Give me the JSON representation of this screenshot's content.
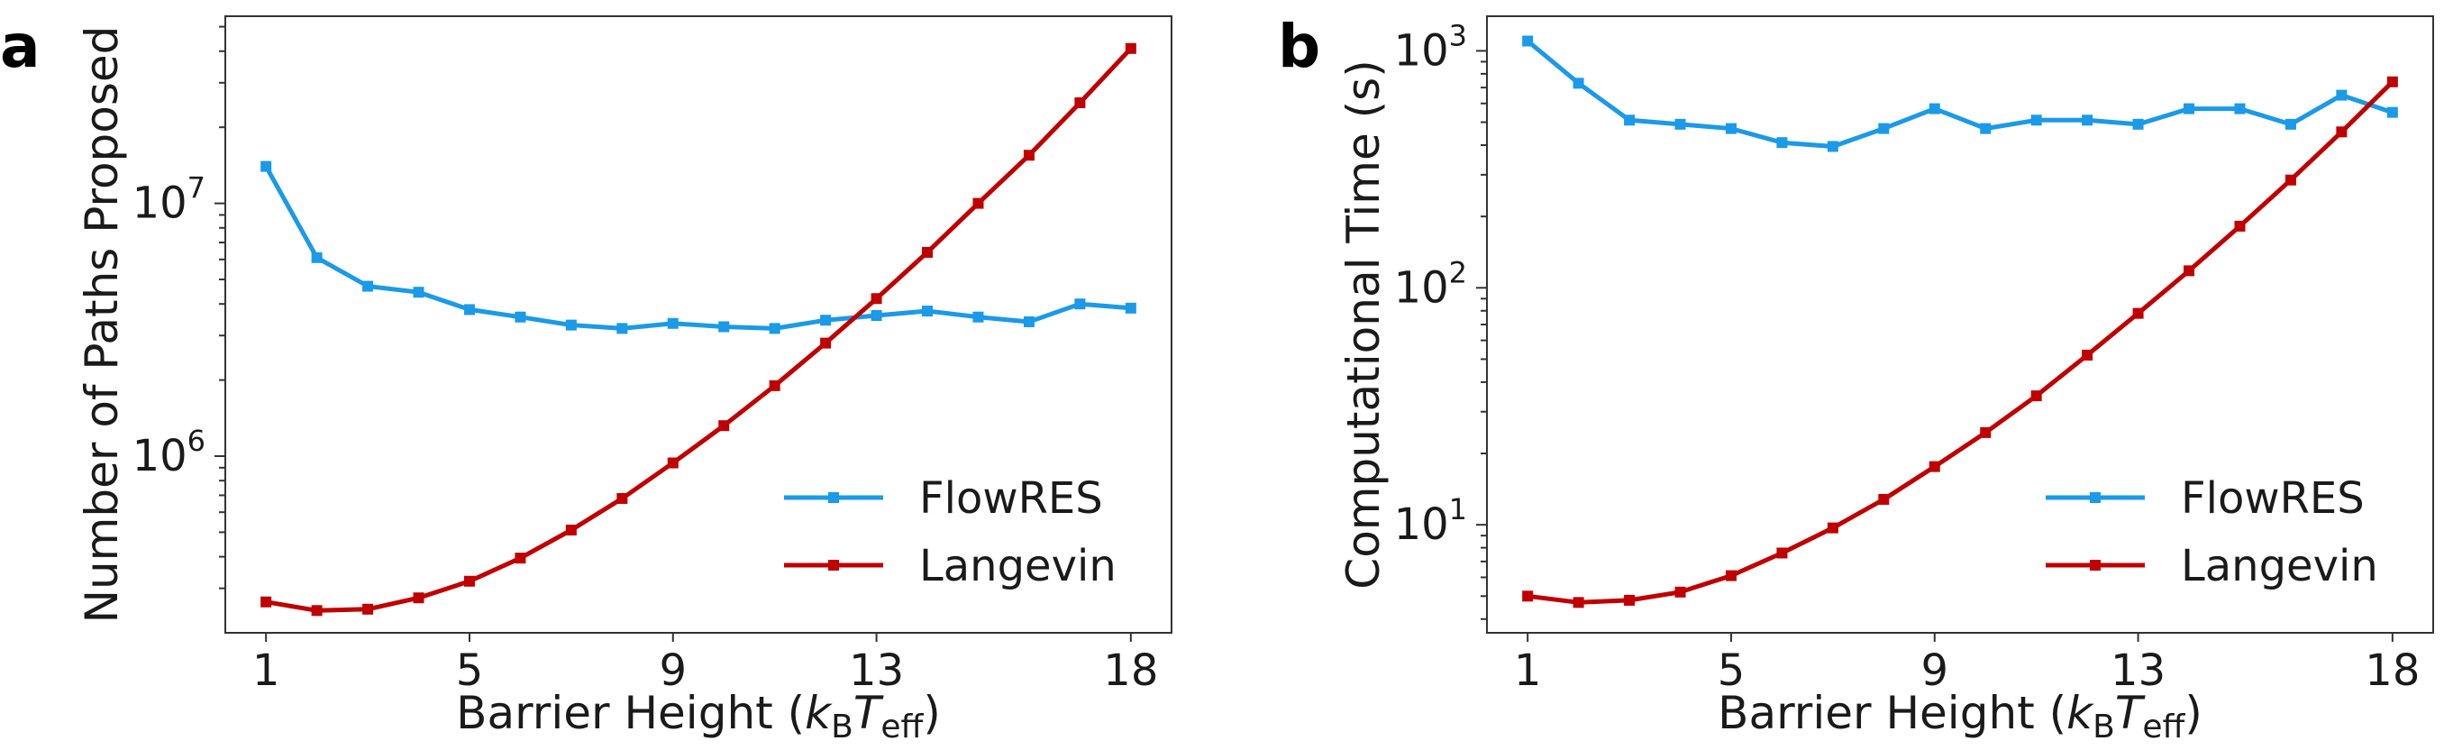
{
  "chart_data": [
    {
      "type": "line",
      "panel_label": "a",
      "ylabel": "Number of Paths Proposed",
      "xlabel": "Barrier Height (k_B T_eff)",
      "xlabel_parts": {
        "pre": "Barrier Height (",
        "k": "k",
        "ksub": "B",
        "T": "T",
        "tsub": "eff",
        "post": ")"
      },
      "x_ticks": [
        1,
        5,
        9,
        13,
        18
      ],
      "y_scale": "log",
      "y_ticks": [
        {
          "base": "10",
          "exp": "6",
          "value": 1000000
        },
        {
          "base": "10",
          "exp": "7",
          "value": 10000000
        }
      ],
      "xlim": [
        0.2,
        18.8
      ],
      "ylim": [
        200000,
        55000000
      ],
      "grid": false,
      "legend_position": "lower-right",
      "x": [
        1,
        2,
        3,
        4,
        5,
        6,
        7,
        8,
        9,
        10,
        11,
        12,
        13,
        14,
        15,
        16,
        17,
        18
      ],
      "series": [
        {
          "name": "FlowRES",
          "color": "#1a9ae8",
          "values": [
            14000000,
            6100000,
            4700000,
            4450000,
            3800000,
            3550000,
            3300000,
            3200000,
            3350000,
            3250000,
            3200000,
            3450000,
            3600000,
            3750000,
            3550000,
            3400000,
            4000000,
            3850000
          ]
        },
        {
          "name": "Langevin",
          "color": "#c00000",
          "values": [
            265000,
            245000,
            248000,
            275000,
            320000,
            395000,
            510000,
            680000,
            940000,
            1320000,
            1900000,
            2800000,
            4200000,
            6400000,
            10000000,
            15500000,
            25000000,
            41000000
          ]
        }
      ]
    },
    {
      "type": "line",
      "panel_label": "b",
      "ylabel": "Computational Time (s)",
      "xlabel": "Barrier Height (k_B T_eff)",
      "xlabel_parts": {
        "pre": "Barrier Height (",
        "k": "k",
        "ksub": "B",
        "T": "T",
        "tsub": "eff",
        "post": ")"
      },
      "x_ticks": [
        1,
        5,
        9,
        13,
        18
      ],
      "y_scale": "log",
      "y_ticks": [
        {
          "base": "10",
          "exp": "1",
          "value": 10
        },
        {
          "base": "10",
          "exp": "2",
          "value": 100
        },
        {
          "base": "10",
          "exp": "3",
          "value": 1000
        }
      ],
      "xlim": [
        0.2,
        18.8
      ],
      "ylim": [
        3.5,
        1400
      ],
      "grid": false,
      "legend_position": "lower-right",
      "x": [
        1,
        2,
        3,
        4,
        5,
        6,
        7,
        8,
        9,
        10,
        11,
        12,
        13,
        14,
        15,
        16,
        17,
        18
      ],
      "series": [
        {
          "name": "FlowRES",
          "color": "#1a9ae8",
          "values": [
            1100,
            730,
            510,
            490,
            470,
            410,
            395,
            470,
            570,
            470,
            510,
            510,
            490,
            570,
            570,
            490,
            650,
            550
          ]
        },
        {
          "name": "Langevin",
          "color": "#c00000",
          "values": [
            5.0,
            4.7,
            4.8,
            5.2,
            6.1,
            7.6,
            9.7,
            12.8,
            17.6,
            24.5,
            35,
            52,
            78,
            118,
            182,
            285,
            455,
            740
          ]
        }
      ]
    }
  ]
}
